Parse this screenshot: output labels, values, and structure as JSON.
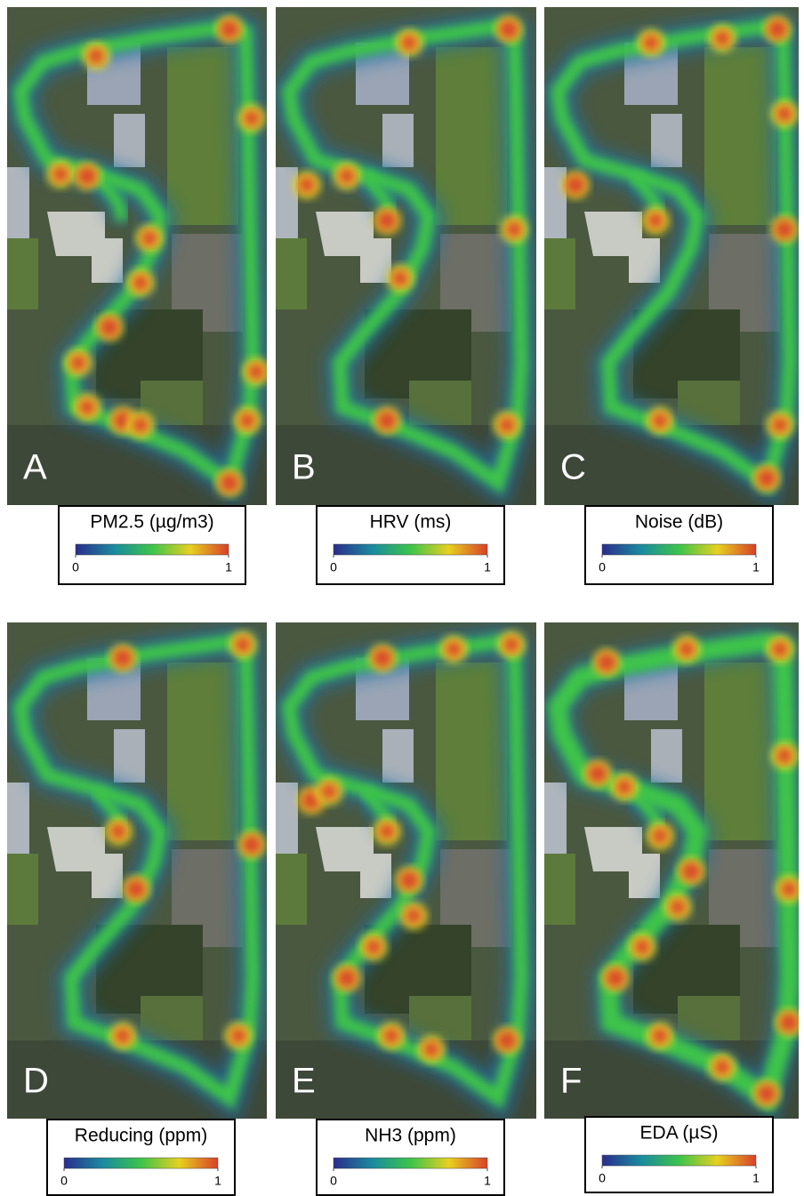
{
  "panels": [
    {
      "letter": "A",
      "legend": {
        "title": "PM2.5 (µg/m3)",
        "lim": [
          0,
          1
        ],
        "ticks": [
          0,
          1
        ]
      }
    },
    {
      "letter": "B",
      "legend": {
        "title": "HRV (ms)",
        "lim": [
          0,
          1
        ],
        "ticks": [
          0,
          1
        ]
      }
    },
    {
      "letter": "C",
      "legend": {
        "title": "Noise (dB)",
        "lim": [
          0,
          1
        ],
        "ticks": [
          0,
          1
        ]
      }
    },
    {
      "letter": "D",
      "legend": {
        "title": "Reducing (ppm)",
        "lim": [
          0,
          1
        ],
        "ticks": [
          0,
          1
        ]
      }
    },
    {
      "letter": "E",
      "legend": {
        "title": "NH3 (ppm)",
        "lim": [
          0,
          1
        ],
        "ticks": [
          0,
          1
        ]
      }
    },
    {
      "letter": "F",
      "legend": {
        "title": "EDA (µS)",
        "lim": [
          0,
          1
        ],
        "ticks": [
          0,
          1
        ]
      }
    }
  ]
}
